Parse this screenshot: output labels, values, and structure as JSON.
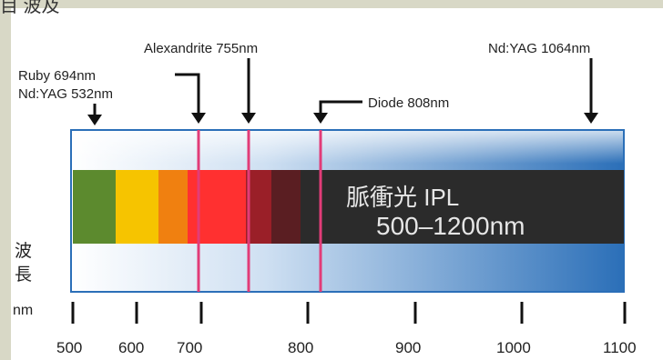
{
  "top_clip_text": "目 波及",
  "lasers": [
    {
      "label_1": "Ruby 694nm",
      "label_2": "Nd:YAG 532nm",
      "wavelength_nm": [
        694,
        532
      ]
    },
    {
      "label": "Alexandrite 755nm",
      "wavelength_nm": 755
    },
    {
      "label": "Diode 808nm",
      "wavelength_nm": 808
    },
    {
      "label": "Nd:YAG 1064nm",
      "wavelength_nm": 1064
    }
  ],
  "ipl": {
    "line1": "脈衝光  IPL",
    "line2": "500–1200nm",
    "range_nm": [
      500,
      1200
    ]
  },
  "axis_label": {
    "line1": "波",
    "line2": "長",
    "line3": "nm"
  },
  "axis_ticks": [
    "500",
    "600",
    "700",
    "800",
    "900",
    "1000",
    "1100"
  ],
  "colors": {
    "frame": "#d8d8c6",
    "spectrum_green": "#5c8a2e",
    "spectrum_yellow": "#f6c400",
    "spectrum_orange": "#f08010",
    "spectrum_red": "#ff3030",
    "ipl_box": "#2b2b2b",
    "blue_band": "#2b6fb8",
    "laser_line": "#e23c78"
  }
}
